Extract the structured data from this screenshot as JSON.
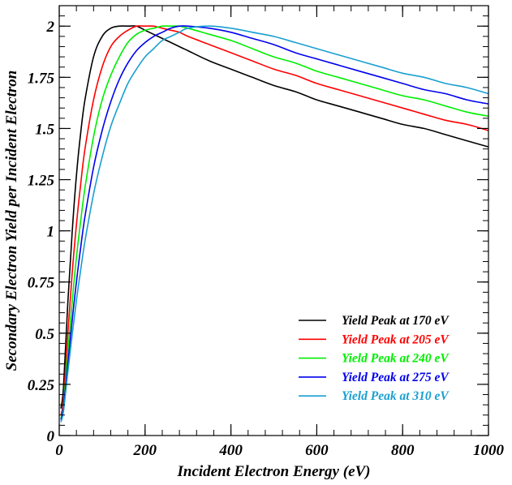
{
  "chart_data": {
    "type": "line",
    "xlabel": "Incident Electron Energy (eV)",
    "ylabel": "Secondary Electron Yield per Incident Electron",
    "xlim": [
      0,
      1000
    ],
    "ylim": [
      0,
      2.1
    ],
    "x_ticks": [
      0,
      200,
      400,
      600,
      800,
      1000
    ],
    "x_tick_labels": [
      "0",
      "200",
      "400",
      "600",
      "800",
      "1000"
    ],
    "y_ticks": [
      0,
      0.25,
      0.5,
      0.75,
      1,
      1.25,
      1.5,
      1.75,
      2
    ],
    "y_tick_labels": [
      "0",
      "0.25",
      "0.5",
      "0.75",
      "1",
      "1.25",
      "1.5",
      "1.75",
      "2"
    ],
    "grid": false,
    "legend_position": "bottom-right",
    "x": [
      10,
      20,
      30,
      40,
      50,
      60,
      80,
      100,
      120,
      140,
      160,
      180,
      200,
      220,
      240,
      260,
      280,
      300,
      350,
      400,
      450,
      500,
      550,
      600,
      650,
      700,
      750,
      800,
      850,
      900,
      950,
      1000
    ],
    "series": [
      {
        "name": "Yield Peak at 170 eV",
        "color": "#000000",
        "values": [
          0.24,
          0.65,
          0.99,
          1.27,
          1.48,
          1.64,
          1.85,
          1.95,
          1.99,
          2.0,
          2.0,
          2.0,
          1.98,
          1.96,
          1.94,
          1.92,
          1.9,
          1.88,
          1.83,
          1.79,
          1.75,
          1.71,
          1.68,
          1.64,
          1.61,
          1.58,
          1.55,
          1.52,
          1.5,
          1.47,
          1.44,
          1.41
        ]
      },
      {
        "name": "Yield Peak at 205 eV",
        "color": "#ff0000",
        "values": [
          0.18,
          0.5,
          0.79,
          1.03,
          1.23,
          1.4,
          1.64,
          1.8,
          1.9,
          1.95,
          1.98,
          2.0,
          2.0,
          2.0,
          1.99,
          1.98,
          1.97,
          1.95,
          1.91,
          1.87,
          1.83,
          1.79,
          1.76,
          1.72,
          1.69,
          1.66,
          1.63,
          1.6,
          1.57,
          1.54,
          1.52,
          1.49
        ]
      },
      {
        "name": "Yield Peak at 240 eV",
        "color": "#00ee00",
        "values": [
          0.15,
          0.41,
          0.65,
          0.87,
          1.05,
          1.21,
          1.46,
          1.64,
          1.76,
          1.85,
          1.92,
          1.96,
          1.98,
          1.99,
          2.0,
          2.0,
          2.0,
          1.99,
          1.96,
          1.93,
          1.89,
          1.85,
          1.82,
          1.78,
          1.75,
          1.72,
          1.69,
          1.66,
          1.64,
          1.61,
          1.58,
          1.56
        ]
      },
      {
        "name": "Yield Peak at 275 eV",
        "color": "#0000ee",
        "values": [
          0.14,
          0.35,
          0.56,
          0.75,
          0.92,
          1.07,
          1.31,
          1.49,
          1.63,
          1.74,
          1.82,
          1.88,
          1.92,
          1.95,
          1.97,
          1.99,
          2.0,
          2.0,
          1.99,
          1.97,
          1.94,
          1.91,
          1.87,
          1.84,
          1.81,
          1.78,
          1.75,
          1.72,
          1.69,
          1.67,
          1.64,
          1.62
        ]
      },
      {
        "name": "Yield Peak at 310 eV",
        "color": "#1a9fd0",
        "values": [
          0.12,
          0.31,
          0.49,
          0.66,
          0.81,
          0.95,
          1.18,
          1.36,
          1.51,
          1.62,
          1.72,
          1.79,
          1.85,
          1.89,
          1.93,
          1.95,
          1.97,
          1.99,
          2.0,
          1.99,
          1.97,
          1.95,
          1.92,
          1.89,
          1.86,
          1.83,
          1.8,
          1.77,
          1.75,
          1.72,
          1.7,
          1.67
        ]
      }
    ]
  }
}
